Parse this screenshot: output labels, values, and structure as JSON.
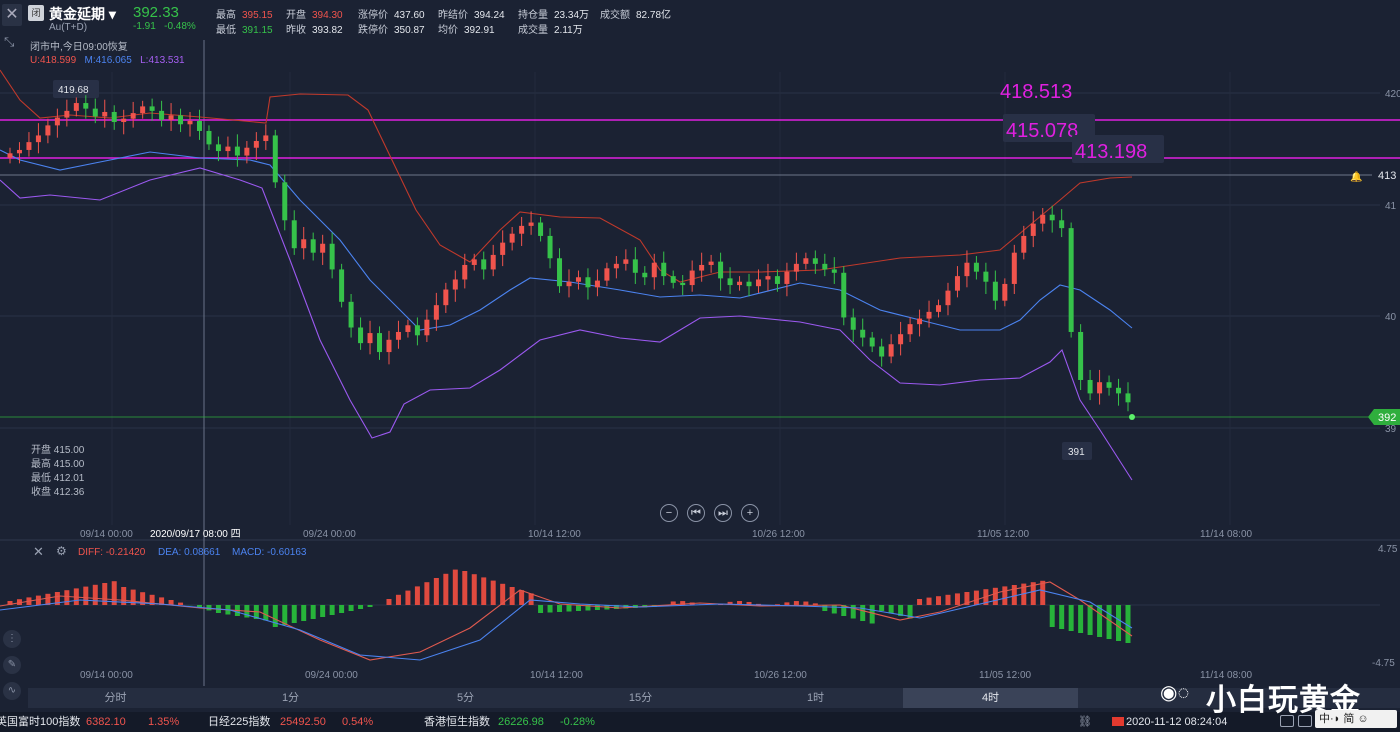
{
  "header": {
    "badge": "闭",
    "name": "黄金延期",
    "code": "Au(T+D)",
    "price": "392.33",
    "change": "-1.91",
    "change_pct": "-0.48%",
    "status": "闭市中,今日09:00恢复",
    "stats": [
      {
        "label": "最高",
        "value": "395.15",
        "color": "red"
      },
      {
        "label": "开盘",
        "value": "394.30",
        "color": "red"
      },
      {
        "label": "涨停价",
        "value": "437.60",
        "color": "white"
      },
      {
        "label": "昨结价",
        "value": "394.24",
        "color": "white"
      },
      {
        "label": "持仓量",
        "value": "23.34万",
        "color": "white"
      },
      {
        "label": "成交额",
        "value": "82.78亿",
        "color": "white"
      },
      {
        "label": "最低",
        "value": "391.15",
        "color": "green"
      },
      {
        "label": "昨收",
        "value": "393.82",
        "color": "white"
      },
      {
        "label": "跌停价",
        "value": "350.87",
        "color": "white"
      },
      {
        "label": "均价",
        "value": "392.91",
        "color": "white"
      },
      {
        "label": "成交量",
        "value": "2.11万",
        "color": "white"
      }
    ],
    "boll": {
      "u": "U:418.599",
      "m": "M:416.065",
      "l": "L:413.531"
    }
  },
  "ohlc_panel": {
    "open": "开盘 415.00",
    "high": "最高 415.00",
    "low": "最低 412.01",
    "close": "收盘 412.36"
  },
  "annotations": {
    "level1": "418.513",
    "level2": "415.078",
    "level3": "413.198",
    "max_label": "419.68",
    "min_label": "391",
    "last_price_tag": "392",
    "crosshair_tag": "413"
  },
  "x_axis": {
    "labels": [
      "09/14 00:00",
      "2020/09/17 08:00 四",
      "09/24 00:00",
      "10/14 12:00",
      "10/26 12:00",
      "11/05 12:00",
      "11/14 08:00"
    ]
  },
  "y_axis": {
    "labels": [
      "420",
      "41",
      "40",
      "39"
    ]
  },
  "macd": {
    "diff": "DIFF: -0.21420",
    "dea": "DEA: 0.08661",
    "macd": "MACD: -0.60163",
    "y_top": "4.75",
    "y_bottom": "-4.75",
    "x_labels": [
      "09/14 00:00",
      "09/24 00:00",
      "10/14 12:00",
      "10/26 12:00",
      "11/05 12:00",
      "11/14 08:00"
    ]
  },
  "tabs": [
    "分时",
    "1分",
    "5分",
    "15分",
    "1时",
    "4时",
    ""
  ],
  "active_tab": 5,
  "ticker": [
    {
      "name": "英国富时100指数",
      "value": "6382.10",
      "pct": "1.35%",
      "color": "red"
    },
    {
      "name": "日经225指数",
      "value": "25492.50",
      "pct": "0.54%",
      "color": "red"
    },
    {
      "name": "香港恒生指数",
      "value": "26226.98",
      "pct": "-0.28%",
      "color": "green"
    }
  ],
  "clock": "2020-11-12 08:24:04",
  "watermark": "小白玩黄金",
  "ime": "中·◗ 简 ☺",
  "colors": {
    "bg": "#1b2233",
    "up": "#f0544d",
    "down": "#36c24a",
    "boll_upper": "#c0392b",
    "boll_mid": "#4b83f0",
    "boll_lower": "#9b59f0",
    "level_line": "#e020e0"
  }
}
